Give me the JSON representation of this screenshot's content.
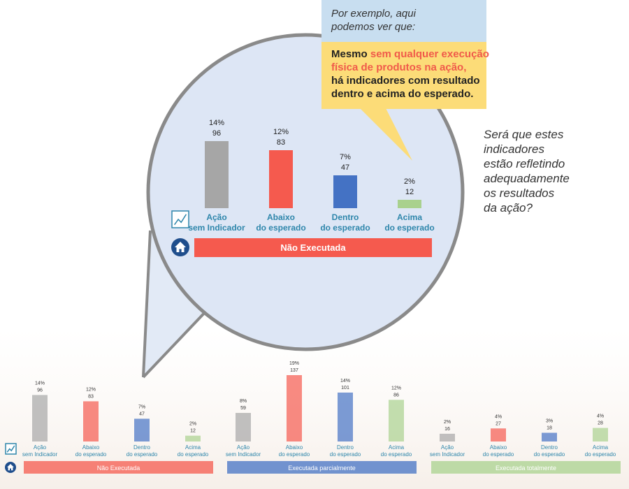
{
  "callout": {
    "intro": [
      "Por exemplo, aqui",
      "podemos ver que:"
    ],
    "lines": [
      {
        "before": "Mesmo ",
        "highlight": "sem qualquer execução",
        "after": ""
      },
      {
        "before": "",
        "highlight": "física de produtos na ação,",
        "after": ""
      },
      {
        "before": "há indicadores com resultado",
        "highlight": "",
        "after": ""
      },
      {
        "before": "dentro e acima do esperado.",
        "highlight": "",
        "after": ""
      }
    ]
  },
  "question": [
    "Será que estes",
    "indicadores",
    "estão refletindo",
    "adequadamente",
    "os resultados",
    "da ação?"
  ],
  "colors": {
    "gray": "#a6a6a6",
    "red": "#f55a4e",
    "blue": "#4472c4",
    "green": "#a9d18e",
    "label": "#2e86ab",
    "circle_fill": "#dde6f5",
    "circle_border": "#8a8a8a",
    "group_bars": [
      "#f55a4e",
      "#4472c4",
      "#a9d18e"
    ]
  },
  "chart_data": [
    {
      "type": "bar",
      "panel": "zoom",
      "categories": [
        "Ação sem Indicador",
        "Abaixo do esperado",
        "Dentro do esperado",
        "Acima do esperado"
      ],
      "values": [
        96,
        83,
        47,
        12
      ],
      "percents": [
        "14%",
        "12%",
        "7%",
        "2%"
      ],
      "group": "Não Executada"
    },
    {
      "type": "bar",
      "panel": "overview",
      "categories": [
        "Ação sem Indicador",
        "Abaixo do esperado",
        "Dentro do esperado",
        "Acima do esperado"
      ],
      "groups": [
        {
          "name": "Não Executada",
          "values": [
            96,
            83,
            47,
            12
          ],
          "percents": [
            "14%",
            "12%",
            "7%",
            "2%"
          ]
        },
        {
          "name": "Executada parcialmente",
          "values": [
            59,
            137,
            101,
            86
          ],
          "percents": [
            "8%",
            "19%",
            "14%",
            "12%"
          ]
        },
        {
          "name": "Executada totalmente",
          "values": [
            16,
            27,
            18,
            28
          ],
          "percents": [
            "2%",
            "4%",
            "3%",
            "4%"
          ]
        }
      ]
    }
  ]
}
